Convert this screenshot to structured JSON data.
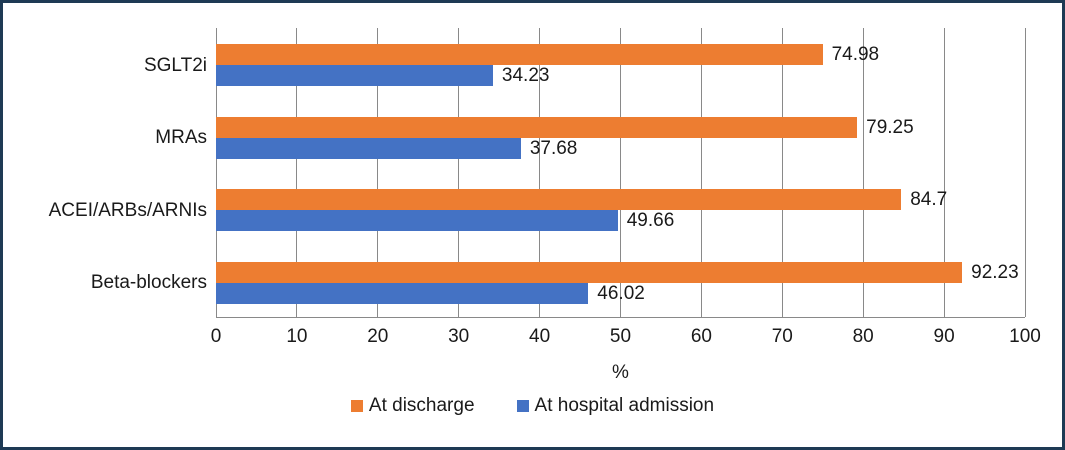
{
  "chart_data": {
    "type": "bar",
    "orientation": "horizontal",
    "title": "",
    "categories": [
      "SGLT2i",
      "MRAs",
      "ACEI/ARBs/ARNIs",
      "Beta-blockers"
    ],
    "series": [
      {
        "name": "At discharge",
        "color": "#ED7D31",
        "values": [
          74.98,
          79.25,
          84.7,
          92.23
        ],
        "labels": [
          "74.98",
          "79.25",
          "84.7",
          "92.23"
        ]
      },
      {
        "name": "At hospital admission",
        "color": "#4472C4",
        "values": [
          34.23,
          37.68,
          49.66,
          46.02
        ],
        "labels": [
          "34.23",
          "37.68",
          "49.66",
          "46.02"
        ]
      }
    ],
    "xlabel": "%",
    "ylabel": "",
    "xlim": [
      0,
      100
    ],
    "x_ticks": [
      0,
      10,
      20,
      30,
      40,
      50,
      60,
      70,
      80,
      90,
      100
    ],
    "x_tick_labels": [
      "0",
      "10",
      "20",
      "30",
      "40",
      "50",
      "60",
      "70",
      "80",
      "90",
      "100"
    ],
    "grid": true,
    "data_labels": true,
    "legend_position": "bottom"
  },
  "style": {
    "frame_border_color": "#1E3A54",
    "background_color": "#FFFFFF",
    "gridline_color": "#898989",
    "axis_line_color": "#898989",
    "text_color": "#1A1A1A"
  }
}
